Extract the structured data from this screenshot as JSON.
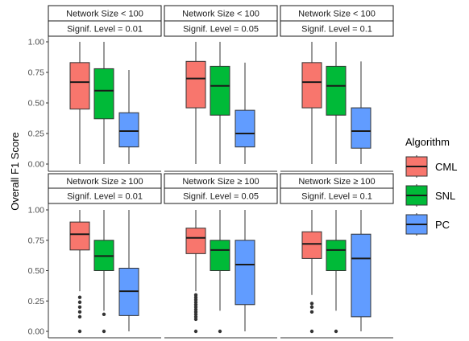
{
  "chart_data": {
    "type": "boxplot",
    "ylabel": "Overall F1 Score",
    "ylim": [
      0,
      1
    ],
    "yticks": [
      {
        "value": 0,
        "label": "0.00"
      },
      {
        "value": 0.25,
        "label": "0.25"
      },
      {
        "value": 0.5,
        "label": "0.50"
      },
      {
        "value": 0.75,
        "label": "0.75"
      },
      {
        "value": 1,
        "label": "1.00"
      }
    ],
    "grid": false,
    "legend": {
      "title": "Algorithm",
      "position": "right",
      "entries": [
        {
          "label": "CML",
          "color": "#F8766D"
        },
        {
          "label": "SNL",
          "color": "#00BA38"
        },
        {
          "label": "PC",
          "color": "#619CFF"
        }
      ]
    },
    "facets": [
      {
        "row": 0,
        "col": 0,
        "strip_top": "Network Size < 100",
        "strip_bottom": "Signif. Level = 0.01",
        "boxes": [
          {
            "algorithm": "CML",
            "min": 0.0,
            "q1": 0.45,
            "median": 0.67,
            "q3": 0.83,
            "max": 1.0,
            "outliers": []
          },
          {
            "algorithm": "SNL",
            "min": 0.0,
            "q1": 0.37,
            "median": 0.6,
            "q3": 0.78,
            "max": 1.0,
            "outliers": []
          },
          {
            "algorithm": "PC",
            "min": 0.0,
            "q1": 0.14,
            "median": 0.27,
            "q3": 0.42,
            "max": 0.77,
            "outliers": []
          }
        ]
      },
      {
        "row": 0,
        "col": 1,
        "strip_top": "Network Size < 100",
        "strip_bottom": "Signif. Level = 0.05",
        "boxes": [
          {
            "algorithm": "CML",
            "min": 0.0,
            "q1": 0.46,
            "median": 0.7,
            "q3": 0.84,
            "max": 1.0,
            "outliers": []
          },
          {
            "algorithm": "SNL",
            "min": 0.0,
            "q1": 0.4,
            "median": 0.64,
            "q3": 0.8,
            "max": 1.0,
            "outliers": []
          },
          {
            "algorithm": "PC",
            "min": 0.0,
            "q1": 0.14,
            "median": 0.25,
            "q3": 0.44,
            "max": 0.83,
            "outliers": []
          }
        ]
      },
      {
        "row": 0,
        "col": 2,
        "strip_top": "Network Size < 100",
        "strip_bottom": "Signif. Level = 0.1",
        "boxes": [
          {
            "algorithm": "CML",
            "min": 0.0,
            "q1": 0.46,
            "median": 0.67,
            "q3": 0.83,
            "max": 1.0,
            "outliers": []
          },
          {
            "algorithm": "SNL",
            "min": 0.0,
            "q1": 0.4,
            "median": 0.64,
            "q3": 0.8,
            "max": 1.0,
            "outliers": []
          },
          {
            "algorithm": "PC",
            "min": 0.0,
            "q1": 0.13,
            "median": 0.27,
            "q3": 0.46,
            "max": 0.84,
            "outliers": []
          }
        ]
      },
      {
        "row": 1,
        "col": 0,
        "strip_top": "Network Size ≥ 100",
        "strip_bottom": "Signif. Level = 0.01",
        "boxes": [
          {
            "algorithm": "CML",
            "min": 0.33,
            "q1": 0.67,
            "median": 0.8,
            "q3": 0.9,
            "max": 1.0,
            "outliers": [
              0.0,
              0.12,
              0.16,
              0.2,
              0.24,
              0.28
            ]
          },
          {
            "algorithm": "SNL",
            "min": 0.17,
            "q1": 0.5,
            "median": 0.62,
            "q3": 0.75,
            "max": 1.0,
            "outliers": [
              0.0,
              0.14
            ]
          },
          {
            "algorithm": "PC",
            "min": 0.0,
            "q1": 0.13,
            "median": 0.33,
            "q3": 0.52,
            "max": 1.0,
            "outliers": []
          }
        ]
      },
      {
        "row": 1,
        "col": 1,
        "strip_top": "Network Size ≥ 100",
        "strip_bottom": "Signif. Level = 0.05",
        "boxes": [
          {
            "algorithm": "CML",
            "min": 0.33,
            "q1": 0.64,
            "median": 0.77,
            "q3": 0.85,
            "max": 1.0,
            "outliers": [
              0.0,
              0.1,
              0.12,
              0.14,
              0.16,
              0.18,
              0.2,
              0.22,
              0.24,
              0.26,
              0.28,
              0.3
            ]
          },
          {
            "algorithm": "SNL",
            "min": 0.17,
            "q1": 0.5,
            "median": 0.67,
            "q3": 0.75,
            "max": 1.0,
            "outliers": [
              0.0
            ]
          },
          {
            "algorithm": "PC",
            "min": 0.0,
            "q1": 0.22,
            "median": 0.55,
            "q3": 0.75,
            "max": 1.0,
            "outliers": []
          }
        ]
      },
      {
        "row": 1,
        "col": 2,
        "strip_top": "Network Size ≥ 100",
        "strip_bottom": "Signif. Level = 0.1",
        "boxes": [
          {
            "algorithm": "CML",
            "min": 0.3,
            "q1": 0.6,
            "median": 0.72,
            "q3": 0.82,
            "max": 1.0,
            "outliers": [
              0.0,
              0.16,
              0.2,
              0.23
            ]
          },
          {
            "algorithm": "SNL",
            "min": 0.17,
            "q1": 0.5,
            "median": 0.67,
            "q3": 0.75,
            "max": 1.0,
            "outliers": [
              0.0
            ]
          },
          {
            "algorithm": "PC",
            "min": 0.0,
            "q1": 0.12,
            "median": 0.6,
            "q3": 0.8,
            "max": 1.0,
            "outliers": []
          }
        ]
      }
    ]
  }
}
